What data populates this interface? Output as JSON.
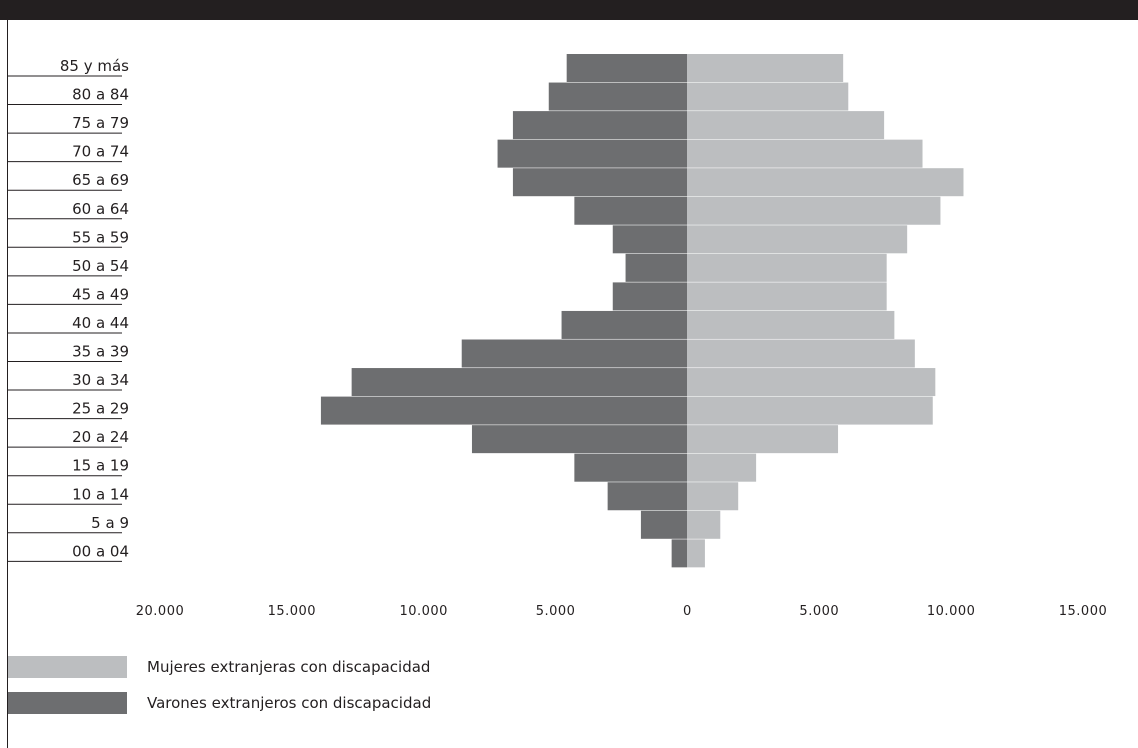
{
  "chart_data": {
    "type": "bar",
    "orientation": "horizontal-population-pyramid",
    "categories": [
      "85 y más",
      "80 a 84",
      "75 a 79",
      "70 a 74",
      "65 a 69",
      "60 a 64",
      "55 a 59",
      "50 a 54",
      "45 a 49",
      "40 a 44",
      "35 a 39",
      "30 a 34",
      "25 a 29",
      "20 a 24",
      "15 a 19",
      "10 a 14",
      "5 a 9",
      "00 a 04"
    ],
    "series": [
      {
        "name": "Varones extranjeros con discapacidad",
        "side": "left",
        "color": "#6d6e70",
        "values": [
          4700,
          5400,
          6800,
          7400,
          6800,
          4400,
          2900,
          2400,
          2900,
          4900,
          8800,
          13100,
          14300,
          8400,
          4400,
          3100,
          1800,
          600
        ]
      },
      {
        "name": "Mujeres extranjeras con discapacidad",
        "side": "right",
        "color": "#bcbec0",
        "values": [
          6100,
          6300,
          7700,
          9200,
          10800,
          9900,
          8600,
          7800,
          7800,
          8100,
          8900,
          9700,
          9600,
          5900,
          2700,
          2000,
          1300,
          700
        ]
      }
    ],
    "x_ticks": [
      "20.000",
      "15.000",
      "10.000",
      "5.000",
      "0",
      "5.000",
      "10.000",
      "15.000"
    ],
    "x_tick_values": [
      -20000,
      -15000,
      -10000,
      -5000,
      0,
      5000,
      10000,
      15000
    ],
    "xlim": [
      -20000,
      15000
    ],
    "title": "",
    "xlabel": "",
    "ylabel": "",
    "grid": false,
    "legend_placement": "bottom-left"
  },
  "legend": [
    {
      "label": "Mujeres extranjeras con discapacidad",
      "color": "#bcbec0"
    },
    {
      "label": "Varones extranjeros con discapacidad",
      "color": "#6d6e70"
    }
  ]
}
